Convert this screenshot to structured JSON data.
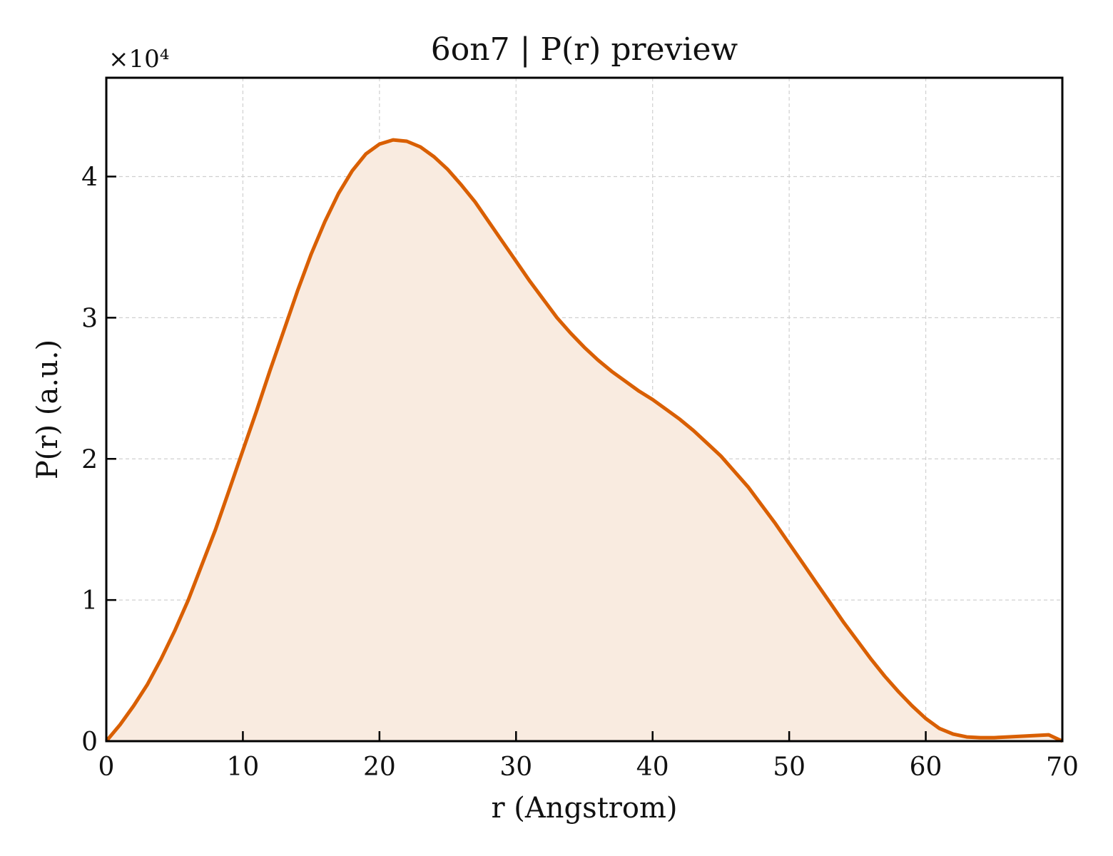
{
  "chart_data": {
    "type": "area",
    "title": "6on7 | P(r) preview",
    "xlabel": "r (Angstrom)",
    "ylabel": "P(r) (a.u.)",
    "y_multiplier_label": "×10⁴",
    "y_scale_factor": 10000,
    "xlim": [
      0,
      70
    ],
    "ylim": [
      0,
      47000
    ],
    "x_ticks": [
      0,
      10,
      20,
      30,
      40,
      50,
      60,
      70
    ],
    "x_tick_labels": [
      "0",
      "10",
      "20",
      "30",
      "40",
      "50",
      "60",
      "70"
    ],
    "y_ticks": [
      0,
      10000,
      20000,
      30000,
      40000
    ],
    "y_tick_labels": [
      "0",
      "1",
      "2",
      "3",
      "4"
    ],
    "grid": true,
    "legend": "none",
    "colors": {
      "line": "#d95f02",
      "fill": "#f9ebe0",
      "grid": "#d0d0d0",
      "axis": "#000000"
    },
    "series": [
      {
        "x": [
          0,
          1,
          2,
          3,
          4,
          5,
          6,
          7,
          8,
          9,
          10,
          11,
          12,
          13,
          14,
          15,
          16,
          17,
          18,
          19,
          20,
          21,
          22,
          23,
          24,
          25,
          26,
          27,
          28,
          29,
          30,
          31,
          32,
          33,
          34,
          35,
          36,
          37,
          38,
          39,
          40,
          41,
          42,
          43,
          44,
          45,
          46,
          47,
          48,
          49,
          50,
          51,
          52,
          53,
          54,
          55,
          56,
          57,
          58,
          59,
          60,
          61,
          62,
          63,
          64,
          65,
          66,
          67,
          68,
          69,
          70
        ],
        "values": [
          0,
          1150,
          2500,
          4000,
          5800,
          7800,
          10000,
          12500,
          15000,
          17800,
          20600,
          23400,
          26300,
          29100,
          31900,
          34500,
          36800,
          38800,
          40400,
          41600,
          42300,
          42600,
          42500,
          42100,
          41400,
          40500,
          39400,
          38200,
          36800,
          35400,
          34000,
          32600,
          31300,
          30000,
          28900,
          27900,
          27000,
          26200,
          25500,
          24800,
          24200,
          23500,
          22800,
          22000,
          21100,
          20200,
          19100,
          18000,
          16700,
          15400,
          14000,
          12600,
          11200,
          9800,
          8400,
          7100,
          5800,
          4600,
          3500,
          2500,
          1600,
          900,
          500,
          300,
          250,
          250,
          300,
          350,
          400,
          450,
          0
        ]
      }
    ]
  }
}
